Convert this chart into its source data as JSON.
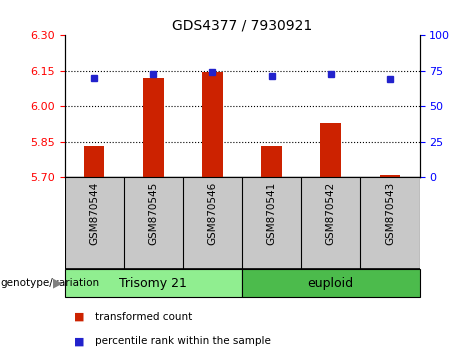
{
  "title": "GDS4377 / 7930921",
  "samples": [
    "GSM870544",
    "GSM870545",
    "GSM870546",
    "GSM870541",
    "GSM870542",
    "GSM870543"
  ],
  "red_values": [
    5.83,
    6.12,
    6.145,
    5.83,
    5.93,
    5.71
  ],
  "blue_values": [
    70,
    73,
    74,
    71,
    73,
    69
  ],
  "ylim_left": [
    5.7,
    6.3
  ],
  "ylim_right": [
    0,
    100
  ],
  "yticks_left": [
    5.7,
    5.85,
    6.0,
    6.15,
    6.3
  ],
  "yticks_right": [
    0,
    25,
    50,
    75,
    100
  ],
  "hlines": [
    5.85,
    6.0,
    6.15
  ],
  "bar_color": "#CC2200",
  "dot_color": "#2222CC",
  "bar_width": 0.35,
  "base_value": 5.7,
  "legend_red": "transformed count",
  "legend_blue": "percentile rank within the sample",
  "genotype_label": "genotype/variation",
  "trisomy_color": "#90EE90",
  "euploid_color": "#4CBB4C",
  "xticklabels_bg": "#C8C8C8",
  "title_fontsize": 10,
  "tick_fontsize": 8,
  "label_fontsize": 8
}
